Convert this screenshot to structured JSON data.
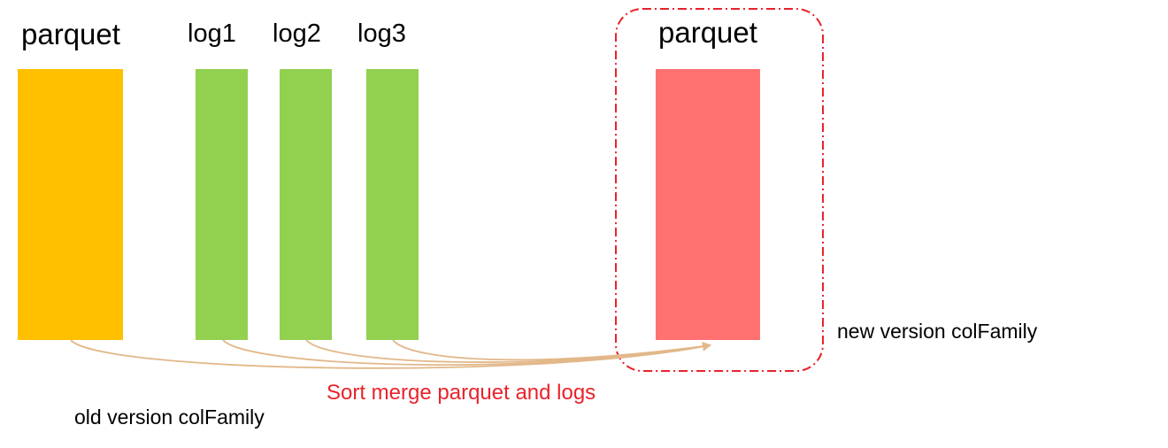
{
  "colors": {
    "old_parquet": "#ffc000",
    "log": "#92d050",
    "new_parquet": "#ff7171",
    "arrow": "#e2b88a",
    "frame": "#e8232b",
    "caption": "#e8232b"
  },
  "blocks": {
    "old_parquet": {
      "label": "parquet"
    },
    "logs": [
      {
        "label": "log1"
      },
      {
        "label": "log2"
      },
      {
        "label": "log3"
      }
    ],
    "new_parquet": {
      "label": "parquet"
    }
  },
  "captions": {
    "merge": "Sort merge parquet and logs",
    "old_version": "old version colFamily",
    "new_version": "new version colFamily"
  }
}
